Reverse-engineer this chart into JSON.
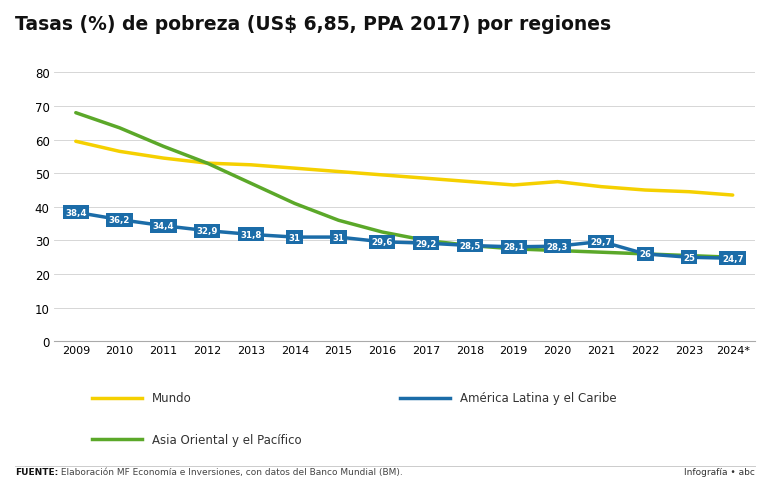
{
  "title": "Tasas (%) de pobreza (US$ 6,85, PPA 2017) por regiones",
  "year_labels": [
    "2009",
    "2010",
    "2011",
    "2012",
    "2013",
    "2014",
    "2015",
    "2016",
    "2017",
    "2018",
    "2019",
    "2020",
    "2021",
    "2022",
    "2023",
    "2024*"
  ],
  "mundo": [
    59.5,
    56.5,
    54.5,
    53.0,
    52.5,
    51.5,
    50.5,
    49.5,
    48.5,
    47.5,
    46.5,
    47.5,
    46.0,
    45.0,
    44.5,
    43.5
  ],
  "america_latina": [
    38.4,
    36.2,
    34.4,
    32.9,
    31.8,
    31.0,
    31.0,
    29.6,
    29.2,
    28.5,
    28.1,
    28.3,
    29.7,
    26.0,
    25.0,
    24.7
  ],
  "asia_pacifico": [
    68.0,
    63.5,
    58.0,
    53.0,
    47.0,
    41.0,
    36.0,
    32.5,
    30.0,
    28.5,
    27.5,
    27.0,
    26.5,
    26.0,
    25.5,
    25.0
  ],
  "america_latina_labels": [
    "38,4",
    "36,2",
    "34,4",
    "32,9",
    "31,8",
    "31",
    "31",
    "29,6",
    "29,2",
    "28,5",
    "28,1",
    "28,3",
    "29,7",
    "26",
    "25",
    "24,7"
  ],
  "color_mundo": "#F5D000",
  "color_america": "#1B6CA8",
  "color_asia": "#5BA829",
  "ylim": [
    0,
    80
  ],
  "yticks": [
    0,
    10,
    20,
    30,
    40,
    50,
    60,
    70,
    80
  ],
  "legend_mundo": "Mundo",
  "legend_america": "América Latina y el Caribe",
  "legend_asia": "Asia Oriental y el Pacífico",
  "footer_source_bold": "FUENTE:",
  "footer_source_normal": " Elaboración MF Economía e Inversiones, con datos del Banco Mundial (BM).",
  "footer_right": "Infografía • abc",
  "background_color": "#ffffff"
}
